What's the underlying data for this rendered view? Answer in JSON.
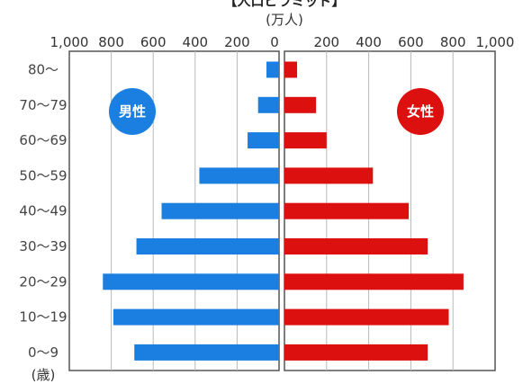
{
  "chart_data": {
    "type": "bar",
    "title": "【人口ピラミッド】",
    "unit_label": "(万人)",
    "y_unit_label": "(歳)",
    "x_tick_labels_left": [
      "1,000",
      "800",
      "600",
      "400",
      "200",
      "0"
    ],
    "x_tick_labels_right": [
      "200",
      "400",
      "600",
      "800",
      "1,000"
    ],
    "xlim": [
      0,
      1000
    ],
    "categories": [
      "80～",
      "70～79",
      "60～69",
      "50～59",
      "40～49",
      "30～39",
      "20～29",
      "10～19",
      "0～9"
    ],
    "series": [
      {
        "name": "男性",
        "color": "#1a7fe0",
        "values": [
          60,
          100,
          150,
          380,
          560,
          680,
          840,
          790,
          690
        ]
      },
      {
        "name": "女性",
        "color": "#dd1010",
        "values": [
          60,
          150,
          200,
          420,
          590,
          680,
          850,
          780,
          680
        ]
      }
    ],
    "grid": "vertical",
    "legend": "inside badges"
  }
}
